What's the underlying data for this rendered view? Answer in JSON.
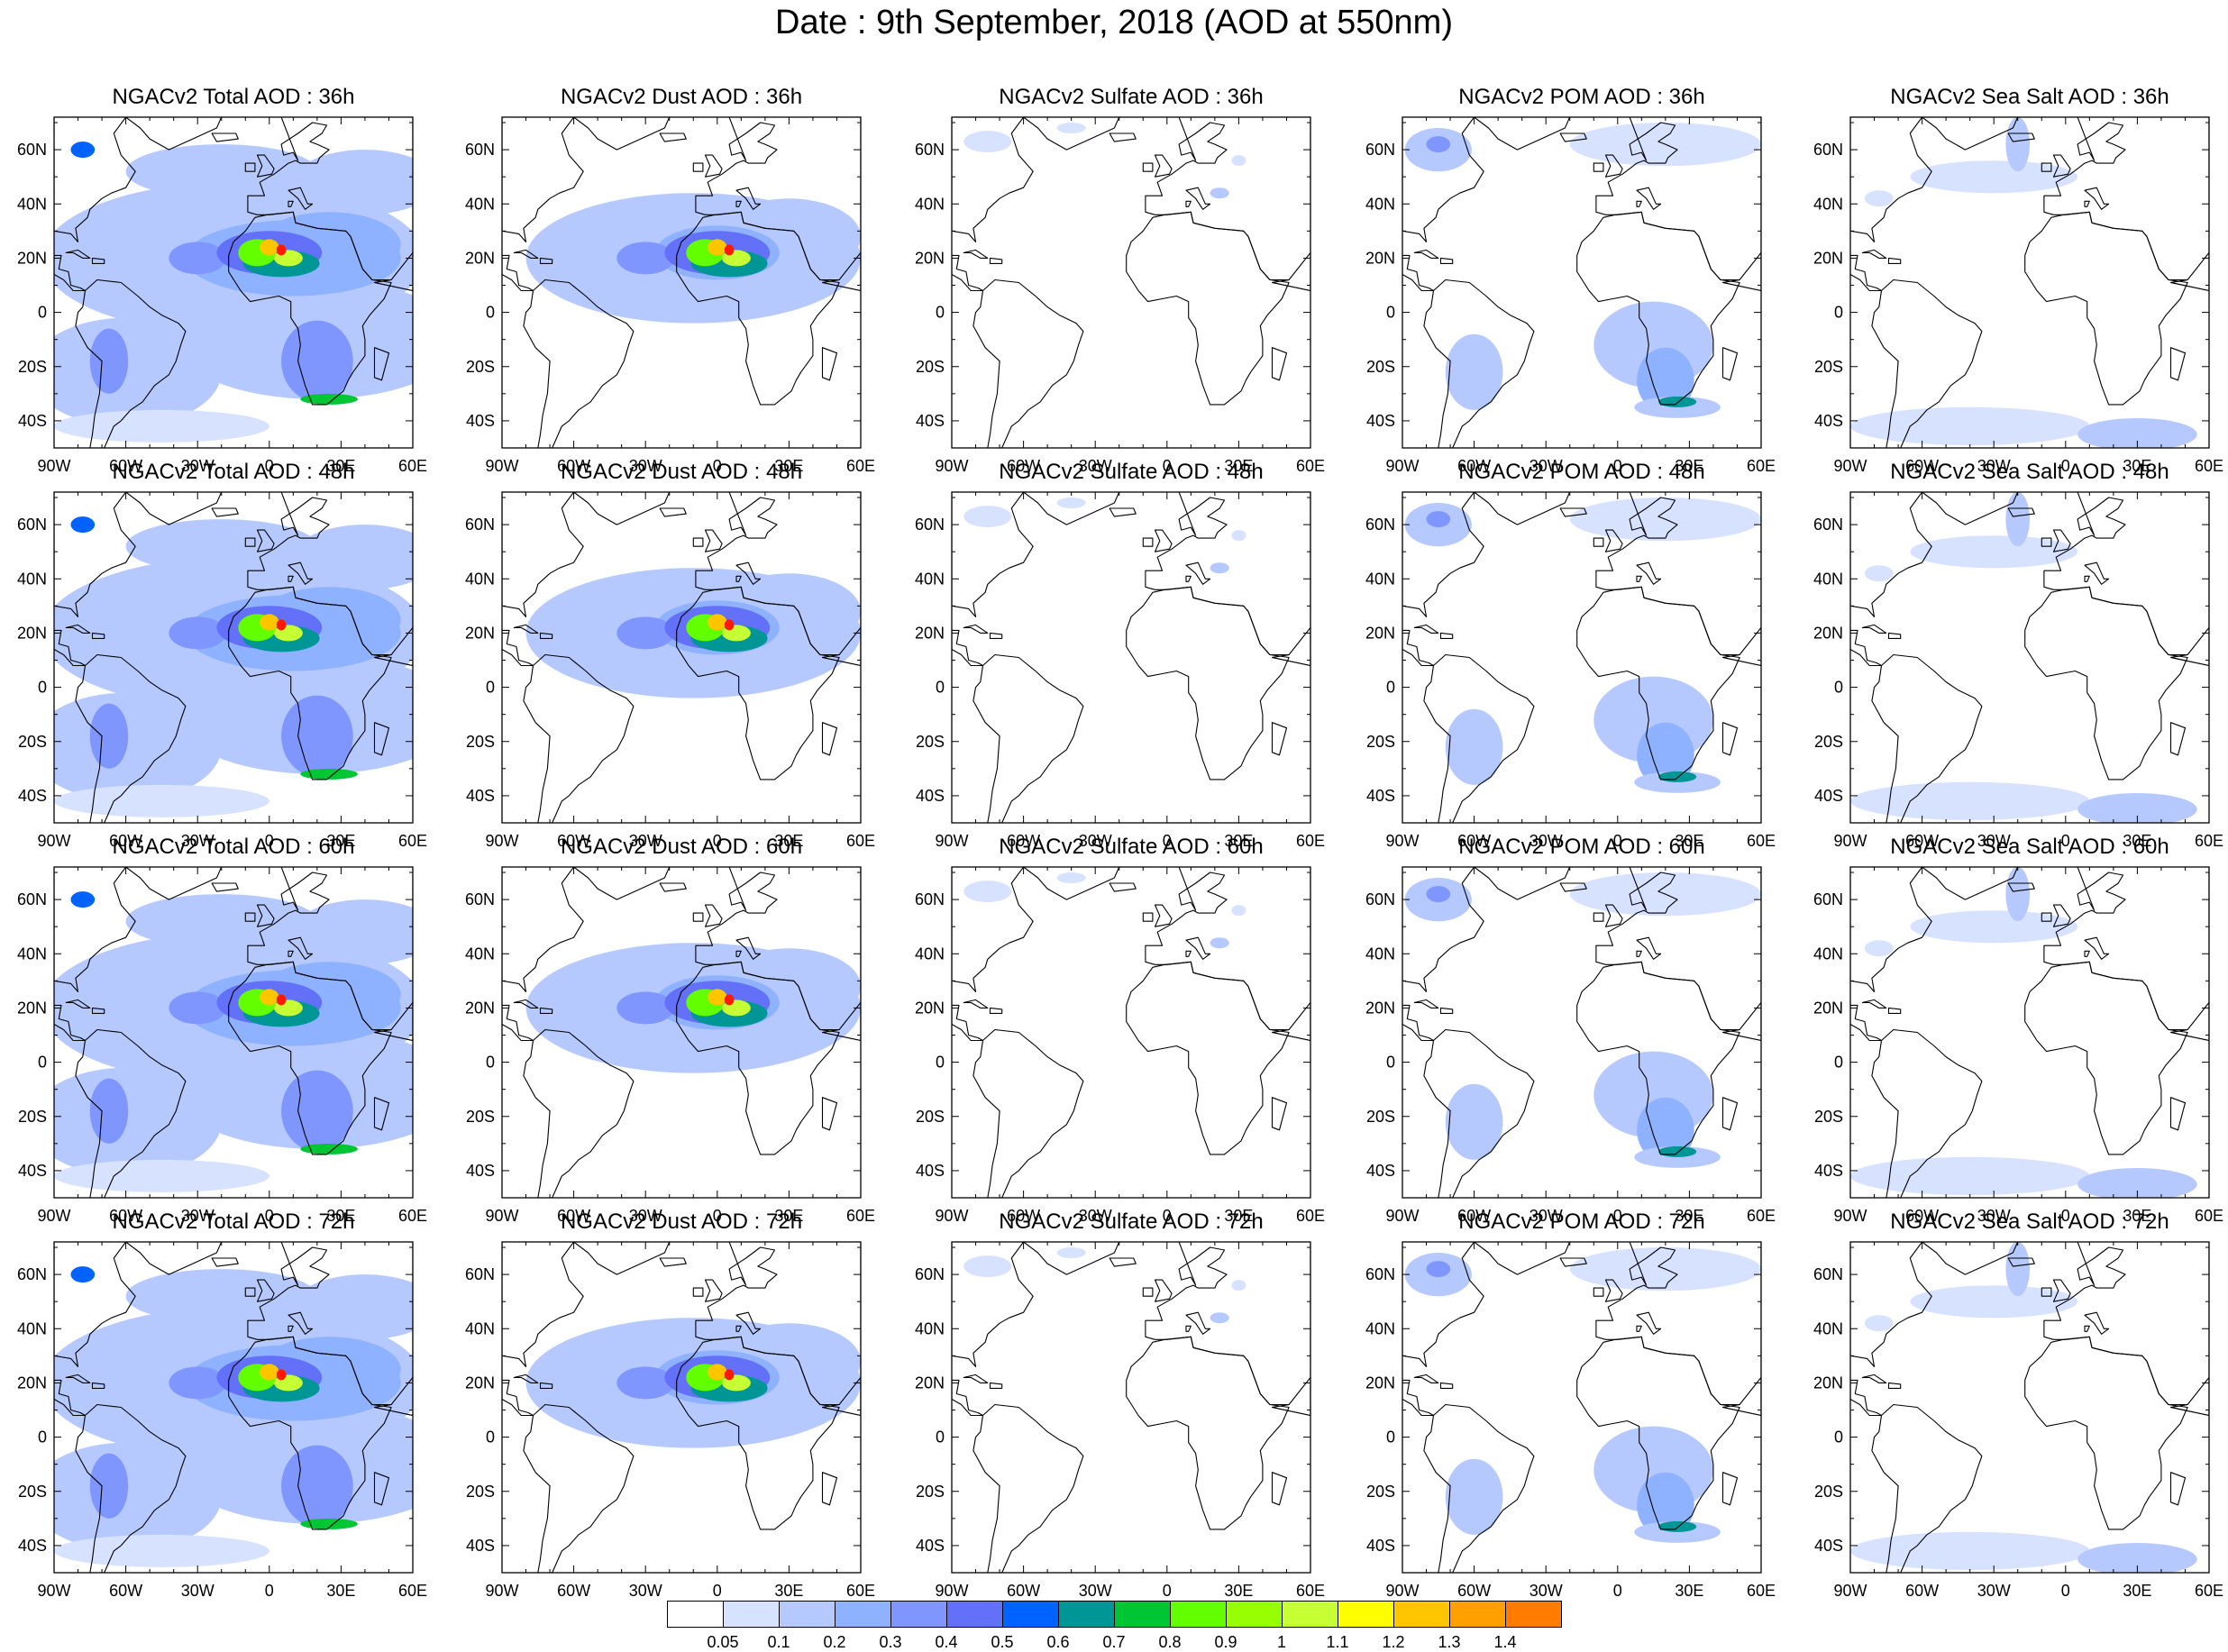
{
  "title": "Date : 9th September, 2018 (AOD at 550nm)",
  "axes": {
    "lat_ticks": [
      "60N",
      "40N",
      "20N",
      "0",
      "20S",
      "40S"
    ],
    "lon_ticks": [
      "90W",
      "60W",
      "30W",
      "0",
      "30E",
      "60E"
    ]
  },
  "colorbar": {
    "colors": [
      "#ffffff",
      "#d6e2ff",
      "#b5c9ff",
      "#8eb2ff",
      "#7f96ff",
      "#6370f8",
      "#0063ff",
      "#009696",
      "#00c633",
      "#63ff00",
      "#96ff00",
      "#c6ff33",
      "#ffff00",
      "#ffc600",
      "#ffa000",
      "#ff7c00",
      "#ff1900"
    ],
    "labels": [
      "0.05",
      "0.1",
      "0.2",
      "0.3",
      "0.4",
      "0.5",
      "0.6",
      "0.7",
      "0.8",
      "0.9",
      "1",
      "1.1",
      "1.2",
      "1.3",
      "1.4"
    ]
  },
  "panels": [
    {
      "title": "NGACv2 Total AOD : 36h",
      "field": "total"
    },
    {
      "title": "NGACv2 Dust AOD : 36h",
      "field": "dust"
    },
    {
      "title": "NGACv2 Sulfate AOD : 36h",
      "field": "sulfate"
    },
    {
      "title": "NGACv2 POM AOD : 36h",
      "field": "pom"
    },
    {
      "title": "NGACv2 Sea Salt AOD : 36h",
      "field": "seasalt"
    },
    {
      "title": "NGACv2 Total AOD : 48h",
      "field": "total"
    },
    {
      "title": "NGACv2 Dust AOD : 48h",
      "field": "dust"
    },
    {
      "title": "NGACv2 Sulfate AOD : 48h",
      "field": "sulfate"
    },
    {
      "title": "NGACv2 POM AOD : 48h",
      "field": "pom"
    },
    {
      "title": "NGACv2 Sea Salt AOD : 48h",
      "field": "seasalt"
    },
    {
      "title": "NGACv2 Total AOD : 60h",
      "field": "total"
    },
    {
      "title": "NGACv2 Dust AOD : 60h",
      "field": "dust"
    },
    {
      "title": "NGACv2 Sulfate AOD : 60h",
      "field": "sulfate"
    },
    {
      "title": "NGACv2 POM AOD : 60h",
      "field": "pom"
    },
    {
      "title": "NGACv2 Sea Salt AOD : 60h",
      "field": "seasalt"
    },
    {
      "title": "NGACv2 Total AOD : 72h",
      "field": "total"
    },
    {
      "title": "NGACv2 Dust AOD : 72h",
      "field": "dust"
    },
    {
      "title": "NGACv2 Sulfate AOD : 72h",
      "field": "sulfate"
    },
    {
      "title": "NGACv2 POM AOD : 72h",
      "field": "pom"
    },
    {
      "title": "NGACv2 Sea Salt  AOD : 72h",
      "field": "seasalt"
    }
  ]
}
